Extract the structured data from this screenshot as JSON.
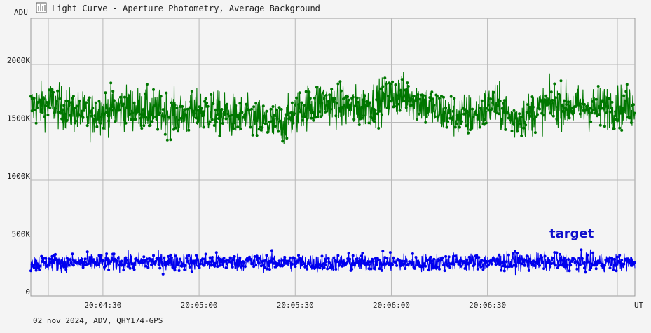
{
  "window": {
    "title": "Light Curve - Aperture Photometry, Average Background",
    "icon": "chart-icon"
  },
  "footer": {
    "info": "02 nov 2024, ADV, QHY174-GPS"
  },
  "colors": {
    "background": "#f4f4f4",
    "grid": "#b8b8b8",
    "comparison": "#007700",
    "target": "#0000ee",
    "target_label": "#1010cc"
  },
  "chart_data": {
    "type": "scatter",
    "ylabel": "ADU",
    "xlabel": "UT",
    "ylim": [
      0,
      2400000
    ],
    "xlim": [
      "20:04:07.5",
      "20:07:16"
    ],
    "y_ticks": [
      {
        "value": 0,
        "label": "0"
      },
      {
        "value": 500000,
        "label": "500K"
      },
      {
        "value": 1000000,
        "label": "1000K"
      },
      {
        "value": 1500000,
        "label": "1500K"
      },
      {
        "value": 2000000,
        "label": "2000K"
      }
    ],
    "x_ticks": [
      {
        "value": "20:04:30",
        "label": "20:04:30"
      },
      {
        "value": "20:05:00",
        "label": "20:05:00"
      },
      {
        "value": "20:05:30",
        "label": "20:05:30"
      },
      {
        "value": "20:06:00",
        "label": "20:06:00"
      },
      {
        "value": "20:06:30",
        "label": "20:06:30"
      }
    ],
    "grid": true,
    "series": [
      {
        "key": "comparison",
        "color": "#007700",
        "mean_profile": [
          [
            "20:04:08",
            1640000
          ],
          [
            "20:04:14",
            1660000
          ],
          [
            "20:04:20",
            1600000
          ],
          [
            "20:04:26",
            1560000
          ],
          [
            "20:04:32",
            1610000
          ],
          [
            "20:04:38",
            1630000
          ],
          [
            "20:04:44",
            1600000
          ],
          [
            "20:04:50",
            1580000
          ],
          [
            "20:04:56",
            1560000
          ],
          [
            "20:05:02",
            1600000
          ],
          [
            "20:05:08",
            1560000
          ],
          [
            "20:05:14",
            1540000
          ],
          [
            "20:05:20",
            1500000
          ],
          [
            "20:05:26",
            1480000
          ],
          [
            "20:05:32",
            1620000
          ],
          [
            "20:05:38",
            1680000
          ],
          [
            "20:05:44",
            1640000
          ],
          [
            "20:05:50",
            1620000
          ],
          [
            "20:05:56",
            1680000
          ],
          [
            "20:06:02",
            1740000
          ],
          [
            "20:06:08",
            1700000
          ],
          [
            "20:06:14",
            1600000
          ],
          [
            "20:06:20",
            1560000
          ],
          [
            "20:06:26",
            1560000
          ],
          [
            "20:06:32",
            1660000
          ],
          [
            "20:06:38",
            1520000
          ],
          [
            "20:06:44",
            1580000
          ],
          [
            "20:06:50",
            1660000
          ],
          [
            "20:06:56",
            1640000
          ],
          [
            "20:07:02",
            1620000
          ],
          [
            "20:07:08",
            1640000
          ],
          [
            "20:07:15",
            1630000
          ]
        ],
        "spread": 320000
      },
      {
        "name": "target",
        "key": "target",
        "color": "#0000ee",
        "mean_profile": [
          [
            "20:04:08",
            285000
          ],
          [
            "20:04:40",
            290000
          ],
          [
            "20:05:10",
            292000
          ],
          [
            "20:05:40",
            285000
          ],
          [
            "20:06:10",
            288000
          ],
          [
            "20:06:40",
            295000
          ],
          [
            "20:07:15",
            285000
          ]
        ],
        "spread": 130000
      }
    ]
  }
}
